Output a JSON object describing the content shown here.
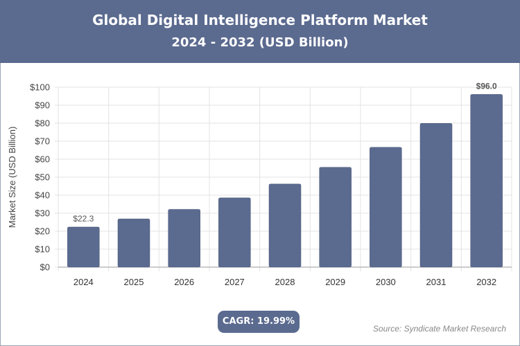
{
  "header": {
    "title": "Global Digital Intelligence Platform Market",
    "subtitle": "2024 - 2032 (USD Billion)"
  },
  "chart_data": {
    "type": "bar",
    "categories": [
      "2024",
      "2025",
      "2026",
      "2027",
      "2028",
      "2029",
      "2030",
      "2031",
      "2032"
    ],
    "values": [
      22.3,
      26.8,
      32.1,
      38.5,
      46.2,
      55.5,
      66.6,
      79.9,
      96.0
    ],
    "data_labels": {
      "0": "$22.3",
      "8": "$96.0"
    },
    "ylabel": "Market Size (USD Billion)",
    "xlabel": "",
    "ylim": [
      0,
      100
    ],
    "yticks": [
      "$0",
      "$10",
      "$20",
      "$30",
      "$40",
      "$50",
      "$60",
      "$70",
      "$80",
      "$90",
      "$100"
    ],
    "grid": true,
    "bar_color": "#5b6a8f"
  },
  "footer": {
    "cagr": "CAGR: 19.99%",
    "source": "Source: Syndicate Market Research"
  }
}
